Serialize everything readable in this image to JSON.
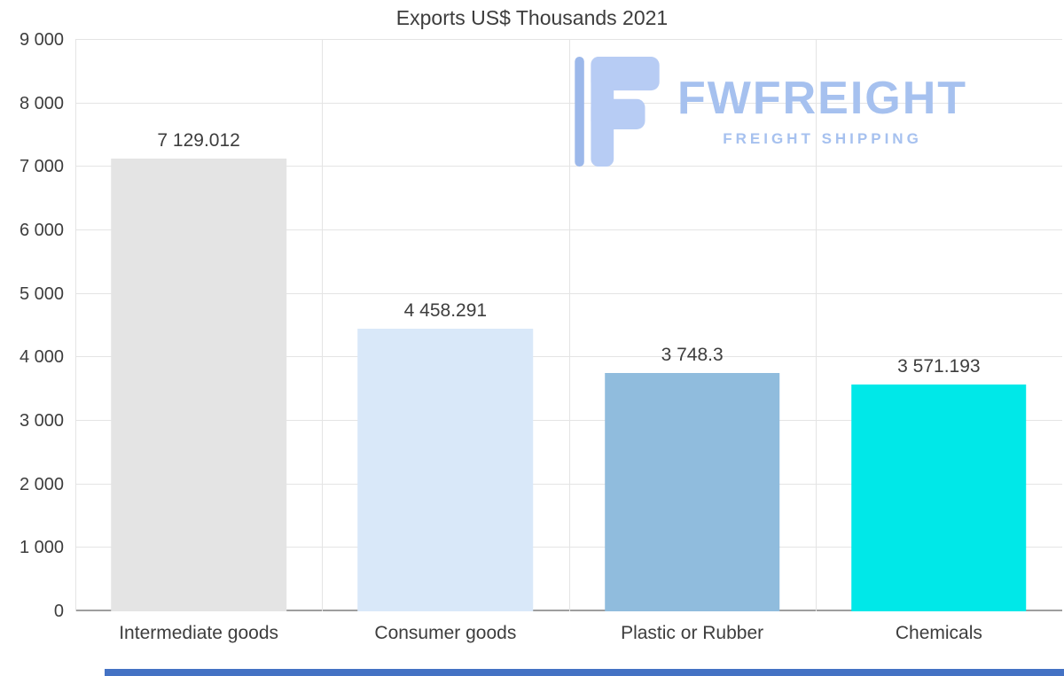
{
  "title": "Exports US$ Thousands 2021",
  "chart_data": {
    "type": "bar",
    "title": "Exports US$ Thousands 2021",
    "categories": [
      "Intermediate goods",
      "Consumer goods",
      "Plastic or Rubber",
      "Chemicals"
    ],
    "values": [
      7129.012,
      4458.291,
      3748.3,
      3571.193
    ],
    "value_labels": [
      "7 129.012",
      "4 458.291",
      "3 748.3",
      "3 571.193"
    ],
    "bar_colors": [
      "#e4e4e4",
      "#d9e8f9",
      "#90bcdd",
      "#00e8e8"
    ],
    "ylim": [
      0,
      9000
    ],
    "ytick_step": 1000,
    "ytick_labels": [
      "0",
      "1 000",
      "2 000",
      "3 000",
      "4 000",
      "5 000",
      "6 000",
      "7 000",
      "8 000",
      "9 000"
    ],
    "grid": true,
    "legend_position": "none",
    "xlabel": "",
    "ylabel": ""
  },
  "watermark": {
    "brand": "FWFREIGHT",
    "tagline": "FREIGHT SHIPPING",
    "text_color": "#a6c1ef",
    "icon_light": "#b7ccf4",
    "icon_dark": "#9cb8ea"
  },
  "colors": {
    "background": "#ffffff",
    "grid": "#e4e4e4",
    "axis": "#9e9e9e",
    "text": "#3d3d3d",
    "scrollbar": "#4472c4"
  }
}
